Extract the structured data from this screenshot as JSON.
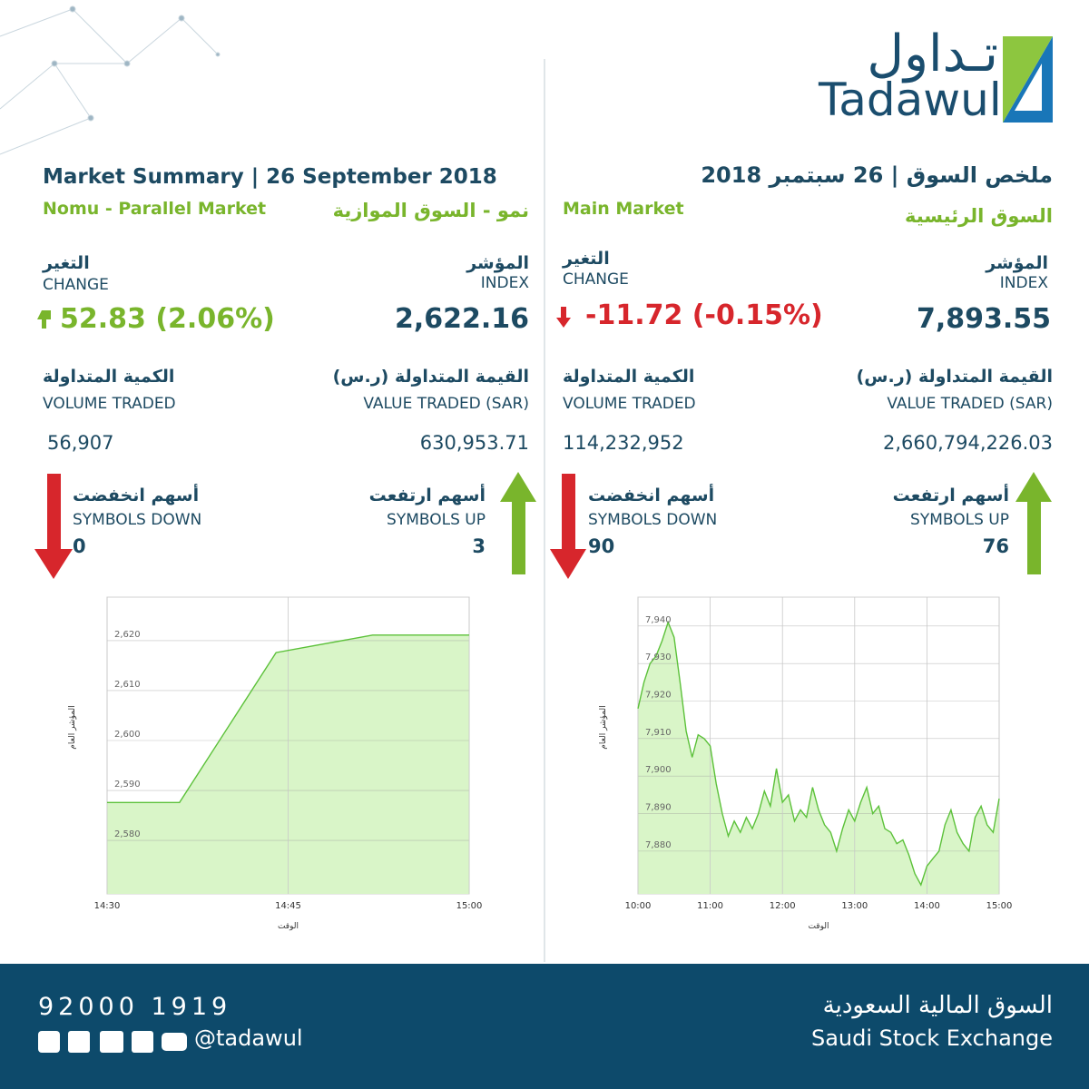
{
  "header": {
    "logo_arabic": "تـداول",
    "logo_latin": "Tadawul"
  },
  "nomu": {
    "title": "Market Summary  | 26 September 2018",
    "name_en": "Nomu - Parallel Market",
    "name_ar": "نمو - السوق الموازية",
    "change_ar": "التغير",
    "change_en": "CHANGE",
    "change": "52.83 (2.06%)",
    "index_ar": "المؤشر",
    "index_en": "INDEX",
    "index": "2,622.16",
    "volume_ar": "الكمية المتداولة",
    "volume_en": "VOLUME TRADED",
    "volume": "56,907",
    "value_ar": "القيمة المتداولة (ر.س)",
    "value_en": "VALUE TRADED (SAR)",
    "value": "630,953.71",
    "down_ar": "أسهم انخفضت",
    "down_en": "SYMBOLS DOWN",
    "down": "0",
    "up_ar": "أسهم ارتفعت",
    "up_en": "SYMBOLS UP",
    "up": "3"
  },
  "main": {
    "title": "ملخص السوق | 26 سبتمبر 2018",
    "name_en": "Main Market",
    "name_ar": "السوق الرئيسية",
    "change_ar": "التغير",
    "change_en": "CHANGE",
    "change": "-11.72 (-0.15%)",
    "index_ar": "المؤشر",
    "index_en": "INDEX",
    "index": "7,893.55",
    "volume_ar": "الكمية المتداولة",
    "volume_en": "VOLUME TRADED",
    "volume": "114,232,952",
    "value_ar": "القيمة المتداولة (ر.س)",
    "value_en": "VALUE TRADED (SAR)",
    "value": "2,660,794,226.03",
    "down_ar": "أسهم انخفضت",
    "down_en": "SYMBOLS DOWN",
    "down": "90",
    "up_ar": "أسهم ارتفعت",
    "up_en": "SYMBOLS UP",
    "up": "76"
  },
  "chart_data": [
    {
      "type": "line",
      "x_label": "الوقت",
      "y_label": "المؤشر العام",
      "x": [
        "14:30",
        "14:36",
        "14:44",
        "14:52",
        "15:00"
      ],
      "values": [
        2587.6,
        2587.6,
        2617.6,
        2621.1,
        2621.1
      ],
      "color": "#5cc13a",
      "fill": "#d9f5c8",
      "xlim": [
        "14:30",
        "15:00"
      ],
      "xticks": [
        "14:30",
        "14:45",
        "15:00"
      ],
      "ylim": [
        2569.3,
        2628.7
      ],
      "yticks": [
        {
          "value": 2580,
          "label": "2,580"
        },
        {
          "value": 2590,
          "label": "2,590"
        },
        {
          "value": 2600,
          "label": "2,600"
        },
        {
          "value": 2610,
          "label": "2,610"
        },
        {
          "value": 2620,
          "label": "2,620"
        }
      ],
      "grid": true
    },
    {
      "type": "line",
      "x_label": "الوقت",
      "y_label": "المؤشر العام",
      "x": [
        "10:00",
        "10:05",
        "10:10",
        "10:15",
        "10:20",
        "10:25",
        "10:30",
        "10:35",
        "10:40",
        "10:45",
        "10:50",
        "10:55",
        "11:00",
        "11:05",
        "11:10",
        "11:15",
        "11:20",
        "11:25",
        "11:30",
        "11:35",
        "11:40",
        "11:45",
        "11:50",
        "11:55",
        "12:00",
        "12:05",
        "12:10",
        "12:15",
        "12:20",
        "12:25",
        "12:30",
        "12:35",
        "12:40",
        "12:45",
        "12:50",
        "12:55",
        "13:00",
        "13:05",
        "13:10",
        "13:15",
        "13:20",
        "13:25",
        "13:30",
        "13:35",
        "13:40",
        "13:45",
        "13:50",
        "13:55",
        "14:00",
        "14:05",
        "14:10",
        "14:15",
        "14:20",
        "14:25",
        "14:30",
        "14:35",
        "14:40",
        "14:45",
        "14:50",
        "14:55",
        "15:00"
      ],
      "values": [
        7918,
        7925,
        7930,
        7932,
        7936,
        7941,
        7937,
        7925,
        7912,
        7905,
        7911,
        7910,
        7908,
        7898,
        7890,
        7884,
        7888,
        7885,
        7889,
        7886,
        7890,
        7896,
        7892,
        7902,
        7893,
        7895,
        7888,
        7891,
        7889,
        7897,
        7891,
        7887,
        7885,
        7880,
        7886,
        7891,
        7888,
        7893,
        7897,
        7890,
        7892,
        7886,
        7885,
        7882,
        7883,
        7879,
        7874,
        7871,
        7876,
        7878,
        7880,
        7887,
        7891,
        7885,
        7882,
        7880,
        7889,
        7892,
        7887,
        7885,
        7894
      ],
      "color": "#5cc13a",
      "fill": "#d9f5c8",
      "xlim": [
        "10:00",
        "15:00"
      ],
      "xticks": [
        "10:00",
        "11:00",
        "12:00",
        "13:00",
        "14:00",
        "15:00"
      ],
      "ylim": [
        7868.6,
        7947.7
      ],
      "yticks": [
        {
          "value": 7880,
          "label": "7,880"
        },
        {
          "value": 7890,
          "label": "7,890"
        },
        {
          "value": 7900,
          "label": "7,900"
        },
        {
          "value": 7910,
          "label": "7,910"
        },
        {
          "value": 7920,
          "label": "7,920"
        },
        {
          "value": 7930,
          "label": "7,930"
        },
        {
          "value": 7940,
          "label": "7,940"
        }
      ],
      "grid": true
    }
  ],
  "footer": {
    "phone": "92000 1919",
    "handle": "@tadawul",
    "name_ar": "السوق المالية السعودية",
    "name_en": "Saudi Stock Exchange"
  }
}
